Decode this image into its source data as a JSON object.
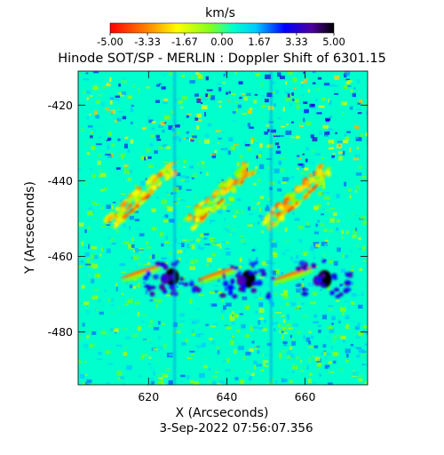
{
  "chart_data": {
    "type": "heatmap",
    "title": "Hinode SOT/SP - MERLIN : Doppler Shift of 6301.15",
    "subtitle": "3-Sep-2022 07:56:07.356",
    "xlabel": "X (Arcseconds)",
    "ylabel": "Y (Arcseconds)",
    "xlim": [
      602,
      676
    ],
    "ylim": [
      -494,
      -411
    ],
    "x_ticks": [
      620,
      640,
      660
    ],
    "y_ticks": [
      -420,
      -440,
      -460,
      -480
    ],
    "colorbar": {
      "label": "km/s",
      "range": [
        -5.0,
        5.0
      ],
      "tick_labels": [
        "-5.00",
        "-3.33",
        "-1.67",
        "0.00",
        "1.67",
        "3.33",
        "5.00"
      ],
      "tick_values": [
        -5.0,
        -3.33,
        -1.67,
        0.0,
        1.67,
        3.33,
        5.0
      ],
      "colors": [
        "#ff0000",
        "#ff7f00",
        "#ffff00",
        "#7fff00",
        "#00ffcc",
        "#00ccff",
        "#0000ff",
        "#5500aa",
        "#000000"
      ]
    },
    "repeat_count": 3,
    "features": [
      {
        "name": "redshift-blob",
        "x": 626.0,
        "y": -465.5,
        "value": 5.0
      },
      {
        "name": "redshift-blob",
        "x": 645.5,
        "y": -466.0,
        "value": 5.0
      },
      {
        "name": "redshift-blob",
        "x": 665.0,
        "y": -466.0,
        "value": 5.0
      },
      {
        "name": "blueshift-band",
        "x": 618.0,
        "y": -444.0,
        "value": -2.5
      },
      {
        "name": "blueshift-band",
        "x": 638.0,
        "y": -444.0,
        "value": -2.5
      },
      {
        "name": "blueshift-band",
        "x": 658.0,
        "y": -444.0,
        "value": -2.5
      }
    ]
  }
}
